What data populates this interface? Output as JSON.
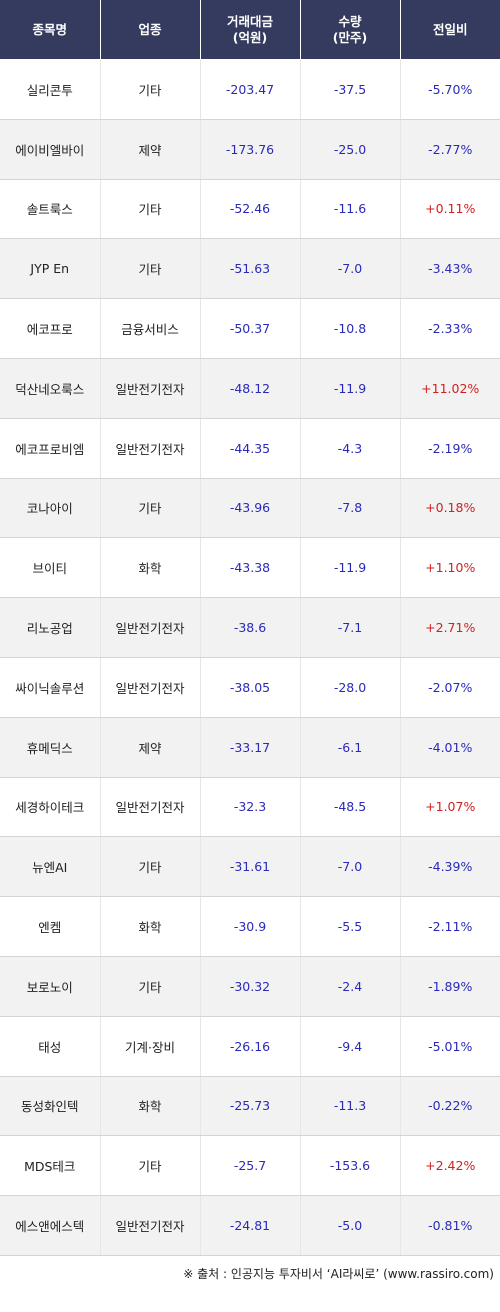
{
  "header": {
    "col1": "종목명",
    "col2": "업종",
    "col3_line1": "거래대금",
    "col3_line2": "(억원)",
    "col4_line1": "수량",
    "col4_line2": "(만주)",
    "col5": "전일비"
  },
  "rows": [
    {
      "name": "실리콘투",
      "sector": "기타",
      "amount": "-203.47",
      "qty": "-37.5",
      "change": "-5.70%",
      "dir": "neg"
    },
    {
      "name": "에이비엘바이",
      "sector": "제약",
      "amount": "-173.76",
      "qty": "-25.0",
      "change": "-2.77%",
      "dir": "neg"
    },
    {
      "name": "솔트룩스",
      "sector": "기타",
      "amount": "-52.46",
      "qty": "-11.6",
      "change": "+0.11%",
      "dir": "pos"
    },
    {
      "name": "JYP En",
      "sector": "기타",
      "amount": "-51.63",
      "qty": "-7.0",
      "change": "-3.43%",
      "dir": "neg"
    },
    {
      "name": "에코프로",
      "sector": "금융서비스",
      "amount": "-50.37",
      "qty": "-10.8",
      "change": "-2.33%",
      "dir": "neg"
    },
    {
      "name": "덕산네오룩스",
      "sector": "일반전기전자",
      "amount": "-48.12",
      "qty": "-11.9",
      "change": "+11.02%",
      "dir": "pos"
    },
    {
      "name": "에코프로비엠",
      "sector": "일반전기전자",
      "amount": "-44.35",
      "qty": "-4.3",
      "change": "-2.19%",
      "dir": "neg"
    },
    {
      "name": "코나아이",
      "sector": "기타",
      "amount": "-43.96",
      "qty": "-7.8",
      "change": "+0.18%",
      "dir": "pos"
    },
    {
      "name": "브이티",
      "sector": "화학",
      "amount": "-43.38",
      "qty": "-11.9",
      "change": "+1.10%",
      "dir": "pos"
    },
    {
      "name": "리노공업",
      "sector": "일반전기전자",
      "amount": "-38.6",
      "qty": "-7.1",
      "change": "+2.71%",
      "dir": "pos"
    },
    {
      "name": "싸이닉솔루션",
      "sector": "일반전기전자",
      "amount": "-38.05",
      "qty": "-28.0",
      "change": "-2.07%",
      "dir": "neg"
    },
    {
      "name": "휴메딕스",
      "sector": "제약",
      "amount": "-33.17",
      "qty": "-6.1",
      "change": "-4.01%",
      "dir": "neg"
    },
    {
      "name": "세경하이테크",
      "sector": "일반전기전자",
      "amount": "-32.3",
      "qty": "-48.5",
      "change": "+1.07%",
      "dir": "pos"
    },
    {
      "name": "뉴엔AI",
      "sector": "기타",
      "amount": "-31.61",
      "qty": "-7.0",
      "change": "-4.39%",
      "dir": "neg"
    },
    {
      "name": "엔켐",
      "sector": "화학",
      "amount": "-30.9",
      "qty": "-5.5",
      "change": "-2.11%",
      "dir": "neg"
    },
    {
      "name": "보로노이",
      "sector": "기타",
      "amount": "-30.32",
      "qty": "-2.4",
      "change": "-1.89%",
      "dir": "neg"
    },
    {
      "name": "태성",
      "sector": "기계·장비",
      "amount": "-26.16",
      "qty": "-9.4",
      "change": "-5.01%",
      "dir": "neg"
    },
    {
      "name": "동성화인텍",
      "sector": "화학",
      "amount": "-25.73",
      "qty": "-11.3",
      "change": "-0.22%",
      "dir": "neg"
    },
    {
      "name": "MDS테크",
      "sector": "기타",
      "amount": "-25.7",
      "qty": "-153.6",
      "change": "+2.42%",
      "dir": "pos"
    },
    {
      "name": "에스앤에스텍",
      "sector": "일반전기전자",
      "amount": "-24.81",
      "qty": "-5.0",
      "change": "-0.81%",
      "dir": "neg"
    }
  ],
  "colors": {
    "header_bg": "#343b5e",
    "negative": "#2a2ab8",
    "positive": "#d21f1f",
    "stripe": "#f2f2f2"
  },
  "footer": {
    "source": "※ 출처 : 인공지능 투자비서 ‘AI라씨로’ (www.rassiro.com)"
  }
}
